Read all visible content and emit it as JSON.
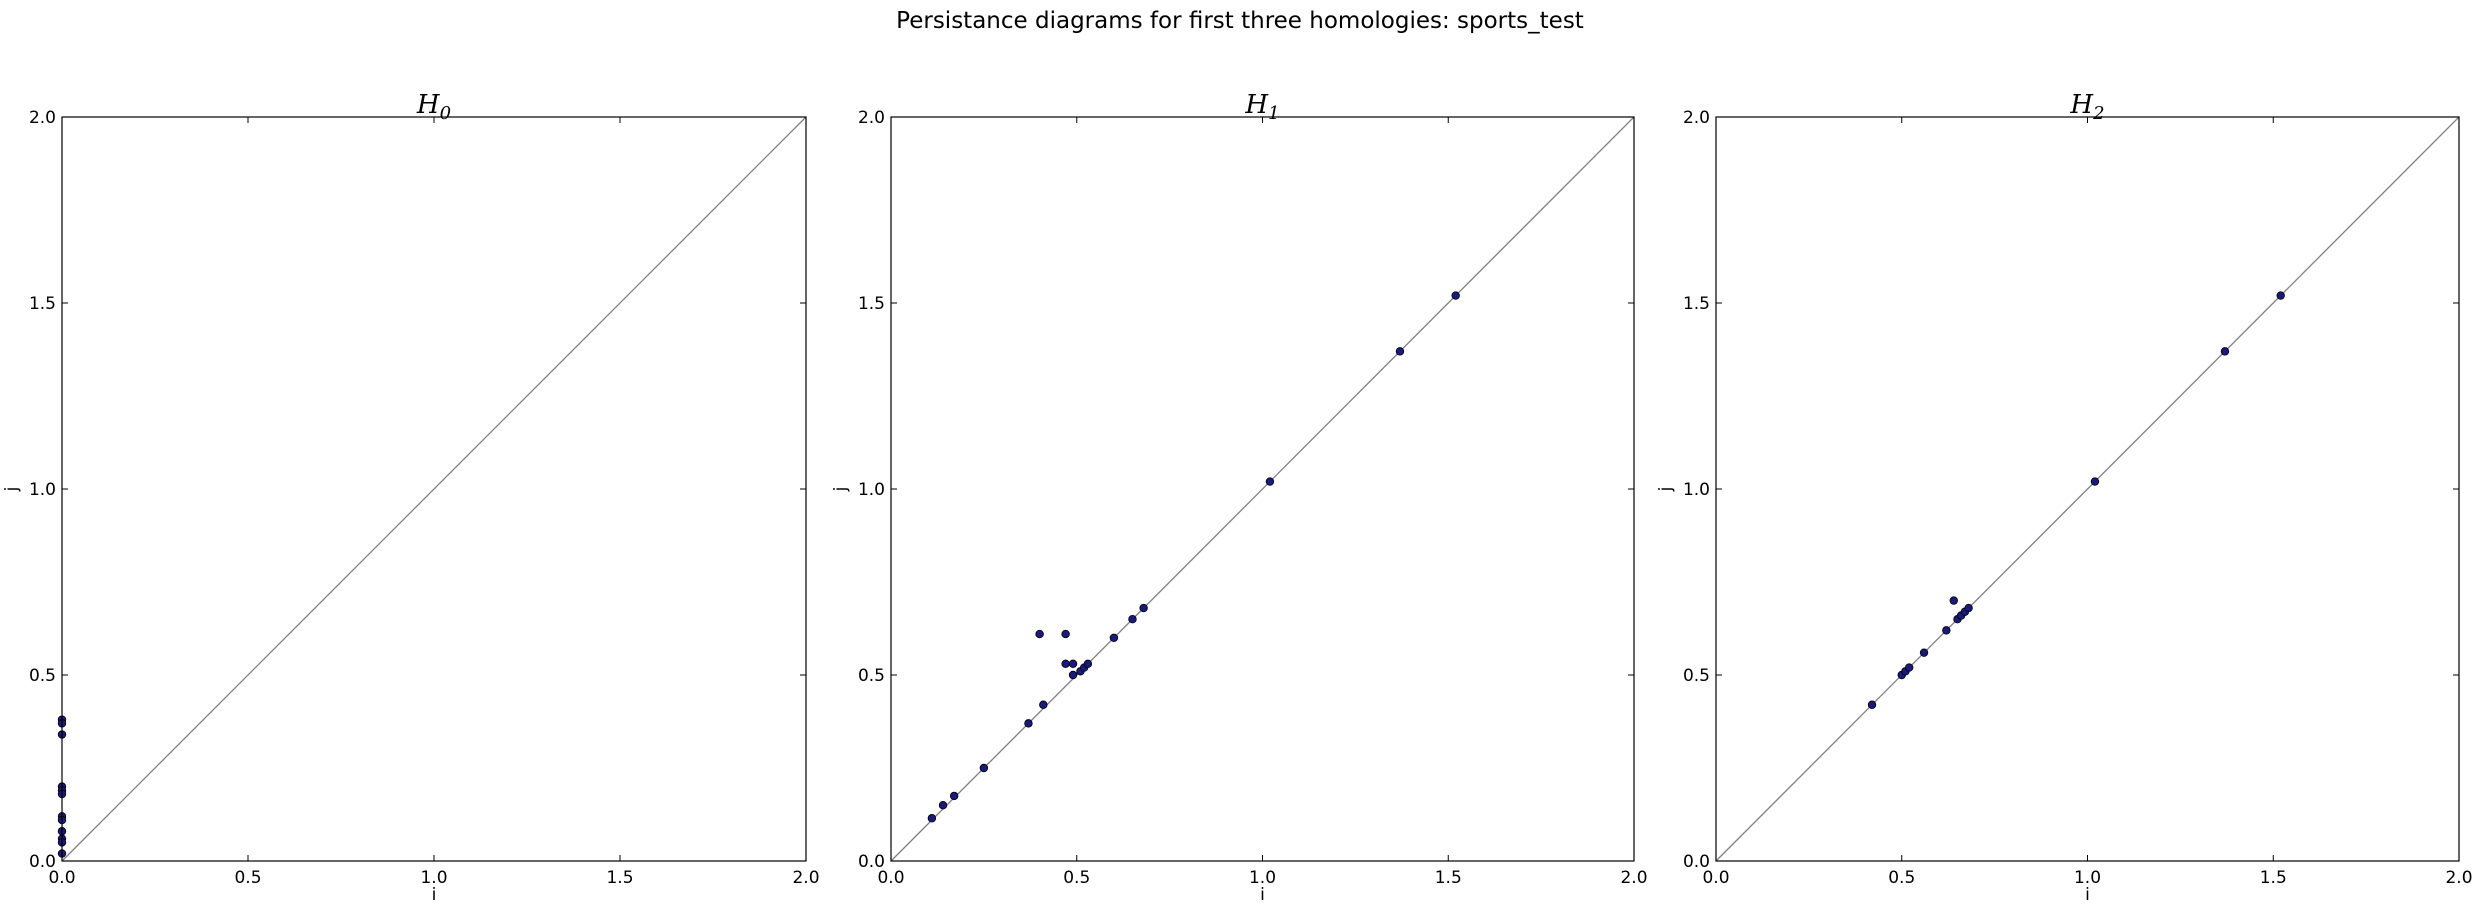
{
  "title": "Persistance diagrams for first three homologies: sports_test",
  "colors": {
    "point_fill": "#1a1a7a",
    "point_stroke": "#000000",
    "diagonal": "#808080",
    "frame": "#000000"
  },
  "chart_data": [
    {
      "type": "scatter",
      "title": "H",
      "title_subscript": "0",
      "xlabel": "i",
      "ylabel": "j",
      "xlim": [
        0,
        2.0
      ],
      "ylim": [
        0,
        2.0
      ],
      "xticks": [
        "0.0",
        "0.5",
        "1.0",
        "1.5",
        "2.0"
      ],
      "yticks": [
        "0.0",
        "0.5",
        "1.0",
        "1.5",
        "2.0"
      ],
      "grid": false,
      "diagonal": true,
      "points": [
        [
          0.0,
          0.38
        ],
        [
          0.0,
          0.37
        ],
        [
          0.0,
          0.34
        ],
        [
          0.0,
          0.2
        ],
        [
          0.0,
          0.19
        ],
        [
          0.0,
          0.18
        ],
        [
          0.0,
          0.12
        ],
        [
          0.0,
          0.11
        ],
        [
          0.0,
          0.08
        ],
        [
          0.0,
          0.06
        ],
        [
          0.0,
          0.05
        ],
        [
          0.0,
          0.02
        ]
      ]
    },
    {
      "type": "scatter",
      "title": "H",
      "title_subscript": "1",
      "xlabel": "i",
      "ylabel": "j",
      "xlim": [
        0,
        2.0
      ],
      "ylim": [
        0,
        2.0
      ],
      "xticks": [
        "0.0",
        "0.5",
        "1.0",
        "1.5",
        "2.0"
      ],
      "yticks": [
        "0.0",
        "0.5",
        "1.0",
        "1.5",
        "2.0"
      ],
      "grid": false,
      "diagonal": true,
      "points": [
        [
          0.11,
          0.115
        ],
        [
          0.14,
          0.15
        ],
        [
          0.17,
          0.175
        ],
        [
          0.25,
          0.25
        ],
        [
          0.37,
          0.37
        ],
        [
          0.41,
          0.42
        ],
        [
          0.4,
          0.61
        ],
        [
          0.47,
          0.61
        ],
        [
          0.47,
          0.53
        ],
        [
          0.49,
          0.53
        ],
        [
          0.49,
          0.5
        ],
        [
          0.51,
          0.51
        ],
        [
          0.52,
          0.52
        ],
        [
          0.53,
          0.53
        ],
        [
          0.6,
          0.6
        ],
        [
          0.65,
          0.65
        ],
        [
          0.68,
          0.68
        ],
        [
          1.02,
          1.02
        ],
        [
          1.37,
          1.37
        ],
        [
          1.52,
          1.52
        ]
      ]
    },
    {
      "type": "scatter",
      "title": "H",
      "title_subscript": "2",
      "xlabel": "i",
      "ylabel": "j",
      "xlim": [
        0,
        2.0
      ],
      "ylim": [
        0,
        2.0
      ],
      "xticks": [
        "0.0",
        "0.5",
        "1.0",
        "1.5",
        "2.0"
      ],
      "yticks": [
        "0.0",
        "0.5",
        "1.0",
        "1.5",
        "2.0"
      ],
      "grid": false,
      "diagonal": true,
      "points": [
        [
          0.42,
          0.42
        ],
        [
          0.5,
          0.5
        ],
        [
          0.51,
          0.51
        ],
        [
          0.52,
          0.52
        ],
        [
          0.56,
          0.56
        ],
        [
          0.62,
          0.62
        ],
        [
          0.64,
          0.7
        ],
        [
          0.65,
          0.65
        ],
        [
          0.66,
          0.66
        ],
        [
          0.67,
          0.67
        ],
        [
          0.68,
          0.68
        ],
        [
          1.02,
          1.02
        ],
        [
          1.37,
          1.37
        ],
        [
          1.52,
          1.52
        ]
      ]
    }
  ]
}
